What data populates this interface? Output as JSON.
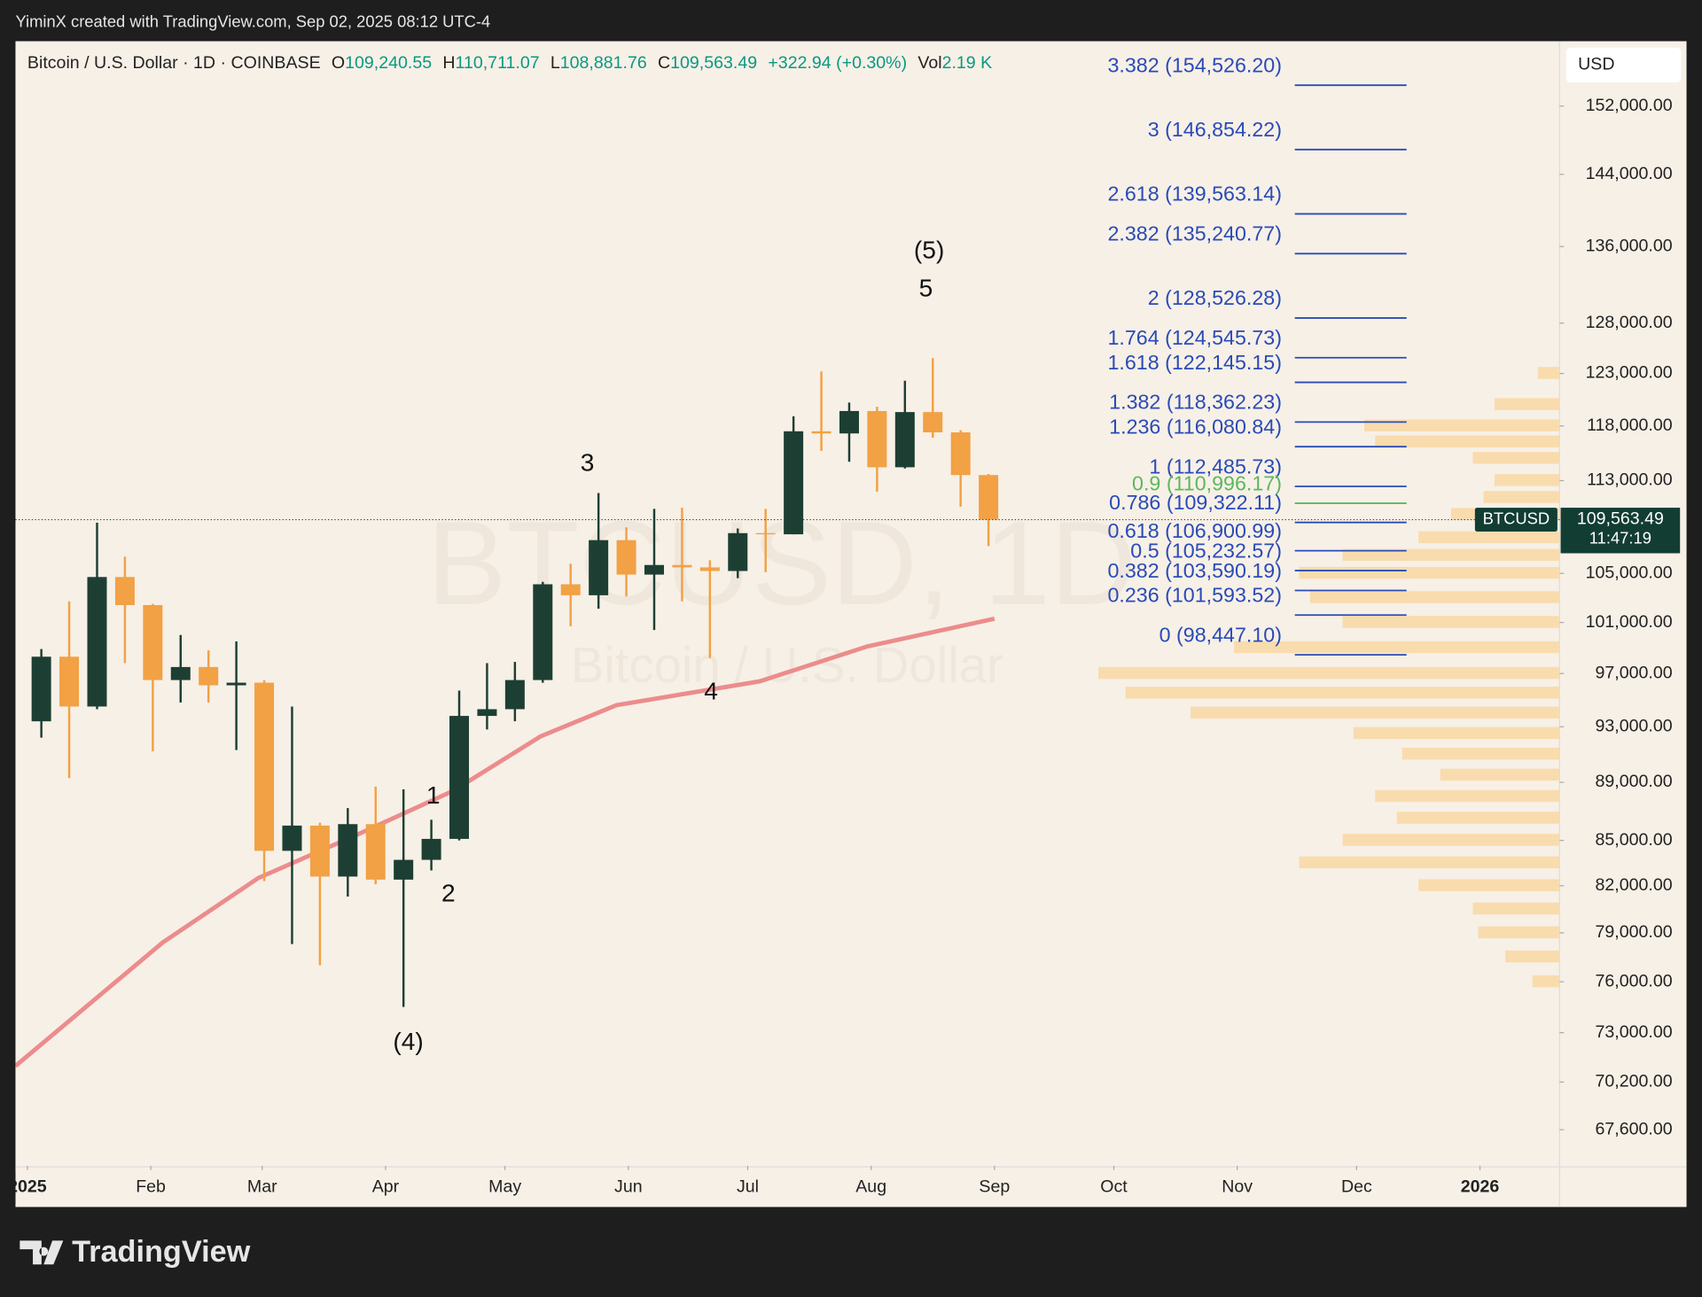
{
  "top_bar": "YiminX created with TradingView.com, Sep 02, 2025 08:12 UTC-4",
  "footer": {
    "brand": "TradingView"
  },
  "chart_data": {
    "type": "candlestick",
    "symbol": "Bitcoin / U.S. Dollar · 1D · COINBASE",
    "ohlc_header": [
      {
        "key": "O",
        "value": "109,240.55"
      },
      {
        "key": "H",
        "value": "110,711.07"
      },
      {
        "key": "L",
        "value": "108,881.76"
      },
      {
        "key": "C",
        "value": "109,563.49"
      }
    ],
    "change": "+322.94 (+0.30%)",
    "volume": {
      "key": "Vol",
      "value": "2.19 K"
    },
    "watermark": {
      "title": "BTCUSD, 1D",
      "subtitle": "Bitcoin / U.S. Dollar"
    },
    "currency": "USD",
    "log_scale": true,
    "up_color": "#1d3f33",
    "down_color": "#f2a144",
    "x": [
      0,
      7,
      14,
      21,
      28,
      35,
      42,
      49,
      56,
      63,
      70,
      77,
      84,
      91,
      98,
      105,
      112,
      119,
      126,
      133,
      140,
      147,
      154,
      161,
      168,
      175,
      182,
      189,
      196,
      203,
      210,
      217,
      224,
      231,
      238
    ],
    "open": [
      93400,
      98300,
      94500,
      104700,
      102400,
      96500,
      97500,
      96100,
      96300,
      84300,
      86000,
      82600,
      86100,
      82400,
      83700,
      85100,
      93800,
      94300,
      96500,
      104100,
      103200,
      107800,
      104900,
      105700,
      105500,
      105200,
      108400,
      108300,
      117500,
      117300,
      119400,
      114200,
      119300,
      117400,
      113500
    ],
    "high": [
      98900,
      102700,
      109300,
      106400,
      102500,
      100000,
      98800,
      99500,
      96500,
      94500,
      86200,
      87200,
      88700,
      88500,
      86400,
      95700,
      97800,
      97900,
      104300,
      105800,
      111900,
      108900,
      110500,
      110600,
      106100,
      108800,
      110500,
      118900,
      123200,
      120200,
      119800,
      122300,
      124500,
      117600,
      113600
    ],
    "low": [
      92200,
      89300,
      94300,
      97800,
      91200,
      94800,
      94800,
      91300,
      82300,
      78300,
      77000,
      81300,
      82100,
      74500,
      83000,
      85000,
      92800,
      93400,
      96300,
      100700,
      102100,
      103100,
      100400,
      102700,
      98200,
      104600,
      105100,
      108300,
      115700,
      114700,
      112000,
      114100,
      116900,
      110700,
      107300
    ],
    "close": [
      98300,
      94500,
      104700,
      102400,
      96500,
      97500,
      96100,
      96300,
      84300,
      86000,
      82600,
      86100,
      82400,
      83700,
      85100,
      93800,
      94300,
      96500,
      104100,
      103200,
      107800,
      104900,
      105700,
      105500,
      105200,
      108400,
      108300,
      117500,
      117300,
      119400,
      114200,
      119300,
      117400,
      113500,
      109563.49
    ],
    "moving_average": {
      "color": "#ec8c8c",
      "x": [
        -3,
        34,
        58,
        83,
        107,
        129,
        148,
        184,
        211,
        243
      ],
      "values": [
        71100,
        78400,
        82500,
        85400,
        88400,
        92300,
        94600,
        96400,
        99100,
        101300
      ]
    },
    "xlim": [
      -3,
      385
    ],
    "ylim": [
      65700,
      160000
    ],
    "xticks": [
      {
        "value": 0,
        "label": "2025"
      },
      {
        "value": 31,
        "label": "Feb"
      },
      {
        "value": 59,
        "label": "Mar"
      },
      {
        "value": 90,
        "label": "Apr"
      },
      {
        "value": 120,
        "label": "May"
      },
      {
        "value": 151,
        "label": "Jun"
      },
      {
        "value": 181,
        "label": "Jul"
      },
      {
        "value": 212,
        "label": "Aug"
      },
      {
        "value": 243,
        "label": "Sep"
      },
      {
        "value": 273,
        "label": "Oct"
      },
      {
        "value": 304,
        "label": "Nov"
      },
      {
        "value": 334,
        "label": "Dec"
      },
      {
        "value": 365,
        "label": "2026"
      }
    ],
    "yticks": [
      {
        "value": 152000,
        "label": "152,000.00"
      },
      {
        "value": 144000,
        "label": "144,000.00"
      },
      {
        "value": 136000,
        "label": "136,000.00"
      },
      {
        "value": 128000,
        "label": "128,000.00"
      },
      {
        "value": 123000,
        "label": "123,000.00"
      },
      {
        "value": 118000,
        "label": "118,000.00"
      },
      {
        "value": 113000,
        "label": "113,000.00"
      },
      {
        "value": 105000,
        "label": "105,000.00"
      },
      {
        "value": 101000,
        "label": "101,000.00"
      },
      {
        "value": 97000,
        "label": "97,000.00"
      },
      {
        "value": 93000,
        "label": "93,000.00"
      },
      {
        "value": 89000,
        "label": "89,000.00"
      },
      {
        "value": 85000,
        "label": "85,000.00"
      },
      {
        "value": 82000,
        "label": "82,000.00"
      },
      {
        "value": 79000,
        "label": "79,000.00"
      },
      {
        "value": 76000,
        "label": "76,000.00"
      },
      {
        "value": 73000,
        "label": "73,000.00"
      },
      {
        "value": 70200,
        "label": "70,200.00"
      },
      {
        "value": 67600,
        "label": "67,600.00"
      }
    ],
    "fib_levels": [
      {
        "value": 154526.2,
        "label": "3.382 (154,526.20)",
        "color": "#2a4bb7"
      },
      {
        "value": 146854.22,
        "label": "3 (146,854.22)",
        "color": "#2a4bb7"
      },
      {
        "value": 139563.14,
        "label": "2.618 (139,563.14)",
        "color": "#2a4bb7"
      },
      {
        "value": 135240.77,
        "label": "2.382 (135,240.77)",
        "color": "#2a4bb7"
      },
      {
        "value": 128526.28,
        "label": "2 (128,526.28)",
        "color": "#2a4bb7"
      },
      {
        "value": 124545.73,
        "label": "1.764 (124,545.73)",
        "color": "#2a4bb7"
      },
      {
        "value": 122145.15,
        "label": "1.618 (122,145.15)",
        "color": "#2a4bb7"
      },
      {
        "value": 118362.23,
        "label": "1.382 (118,362.23)",
        "color": "#2a4bb7"
      },
      {
        "value": 116080.84,
        "label": "1.236 (116,080.84)",
        "color": "#2a4bb7"
      },
      {
        "value": 112485.73,
        "label": "1 (112,485.73)",
        "color": "#2a4bb7"
      },
      {
        "value": 110996.17,
        "label": "0.9 (110,996.17)",
        "color": "#5cb85c"
      },
      {
        "value": 109322.11,
        "label": "0.786 (109,322.11)",
        "color": "#2a4bb7"
      },
      {
        "value": 106900.99,
        "label": "0.618 (106,900.99)",
        "color": "#2a4bb7"
      },
      {
        "value": 105232.57,
        "label": "0.5 (105,232.57)",
        "color": "#2a4bb7"
      },
      {
        "value": 103590.19,
        "label": "0.382 (103,590.19)",
        "color": "#2a4bb7"
      },
      {
        "value": 101593.52,
        "label": "0.236 (101,593.52)",
        "color": "#2a4bb7"
      },
      {
        "value": 98447.1,
        "label": "0 (98,447.10)",
        "color": "#2a4bb7"
      }
    ],
    "volume_profile": {
      "color": "#f9dcad",
      "prices": [
        123000,
        120000,
        118000,
        116500,
        115000,
        113000,
        111500,
        110000,
        108000,
        106500,
        105000,
        103000,
        101000,
        99000,
        97000,
        95500,
        94000,
        92500,
        91000,
        89500,
        88000,
        86500,
        85000,
        83500,
        82000,
        80500,
        79000,
        77500,
        76000
      ],
      "volumes": [
        20,
        60,
        180,
        170,
        80,
        60,
        70,
        100,
        130,
        200,
        240,
        230,
        200,
        300,
        425,
        400,
        340,
        190,
        145,
        110,
        170,
        150,
        200,
        240,
        130,
        80,
        75,
        50,
        25
      ]
    },
    "wave_labels": [
      "(5)",
      "5",
      "3",
      "1",
      "2",
      "4",
      "(4)"
    ],
    "last_price": {
      "value": 109563.49,
      "label": "109,563.49",
      "symbol": "BTCUSD",
      "countdown": "11:47:19"
    }
  }
}
